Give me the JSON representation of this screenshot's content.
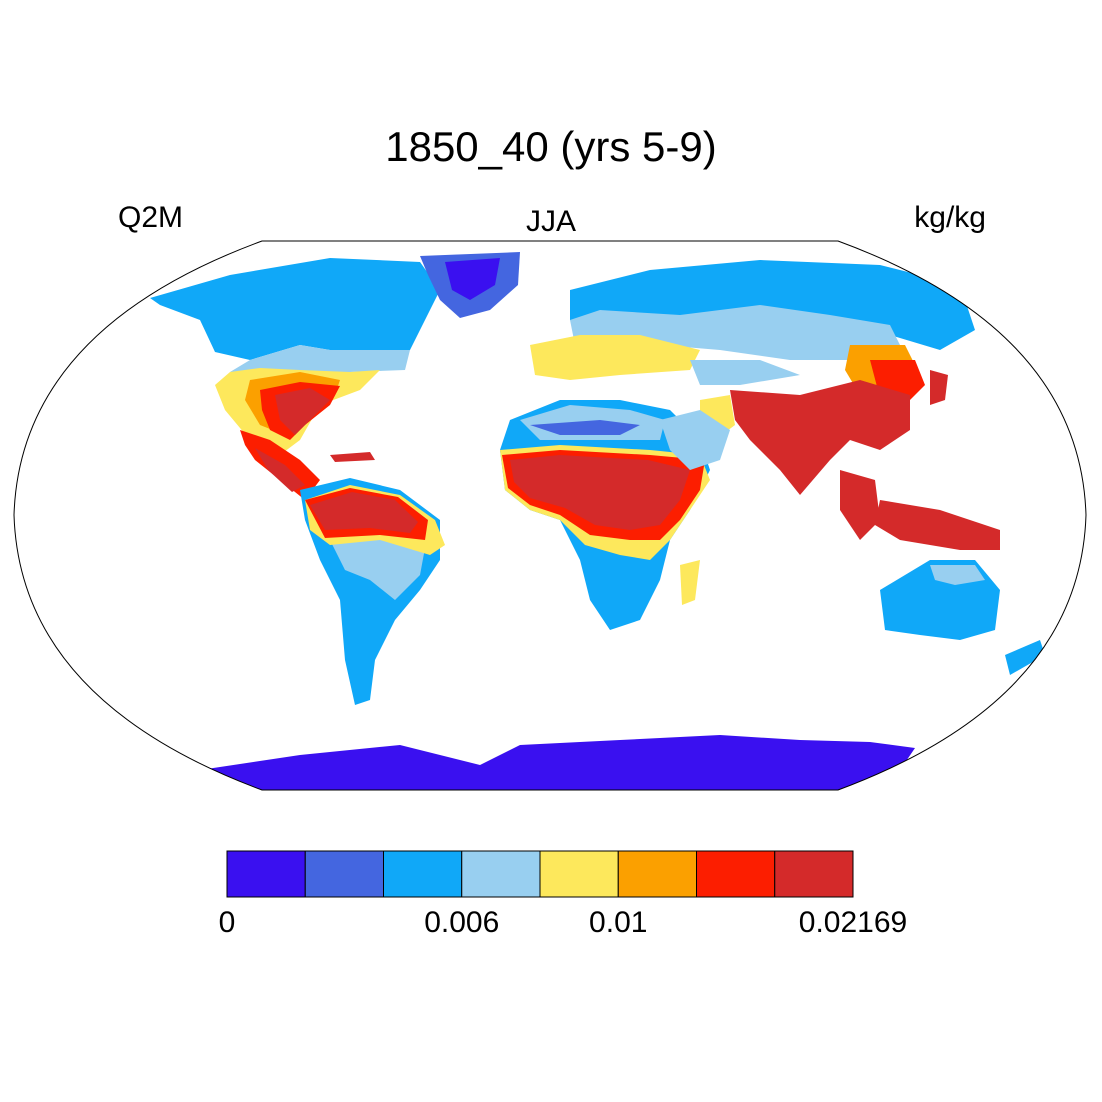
{
  "title": "1850_40 (yrs 5-9)",
  "left_label": "Q2M",
  "center_label": "JJA",
  "right_label": "kg/kg",
  "colorbar": {
    "colors": [
      "#3a10f0",
      "#4466e0",
      "#10a8f8",
      "#98cff0",
      "#fde85c",
      "#fba000",
      "#fc1e00",
      "#d42a2a"
    ],
    "tick_labels": [
      {
        "value": "0",
        "index": 0
      },
      {
        "value": "0.006",
        "index": 3
      },
      {
        "value": "0.01",
        "index": 5
      },
      {
        "value": "0.02169",
        "index": 8
      }
    ]
  },
  "chart_data": {
    "type": "heatmap",
    "title": "1850_40 (yrs 5-9)",
    "variable": "Q2M",
    "season": "JJA",
    "units": "kg/kg",
    "projection": "Robinson",
    "legend": "bottom",
    "range": [
      0,
      0.02169
    ]
  }
}
